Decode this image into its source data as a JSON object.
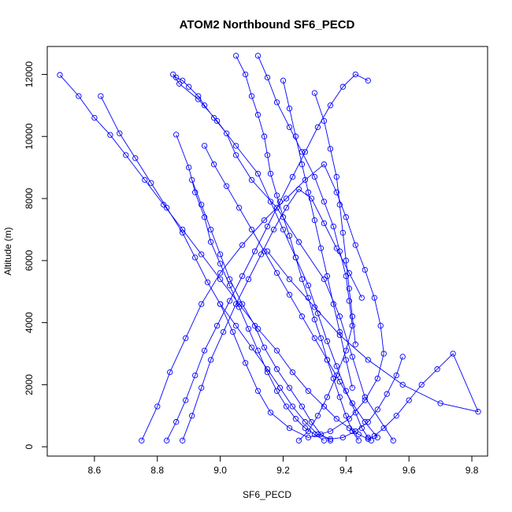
{
  "chart_data": {
    "type": "line",
    "title": "ATOM2 Northbound SF6_PECD",
    "xlabel": "SF6_PECD",
    "ylabel": "Altitude (m)",
    "xlim": [
      8.45,
      9.85
    ],
    "ylim": [
      -300,
      12900
    ],
    "xticks": [
      8.6,
      8.8,
      9.0,
      9.2,
      9.4,
      9.6,
      9.8
    ],
    "xtick_labels": [
      "8.6",
      "8.8",
      "9.0",
      "9.2",
      "9.4",
      "9.6",
      "9.8"
    ],
    "yticks": [
      0,
      2000,
      4000,
      6000,
      8000,
      10000,
      12000
    ],
    "ytick_labels": [
      "0",
      "2000",
      "4000",
      "6000",
      "8000",
      "10000",
      "12000"
    ],
    "grid": false,
    "legend": "none",
    "marker": "open-circle",
    "color": "#0000ff",
    "series": [
      {
        "x": [
          9.55,
          9.46,
          9.42,
          9.38,
          9.33,
          9.25,
          9.18,
          9.1,
          9.05,
          9.02,
          8.98,
          8.95,
          8.93,
          8.9,
          8.88,
          8.86,
          8.85,
          8.87,
          8.93,
          8.99,
          9.05,
          9.12,
          9.16,
          9.2,
          9.24,
          9.28,
          9.31,
          9.34,
          9.37,
          9.4,
          9.43,
          9.45,
          9.47,
          9.48
        ],
        "y": [
          200,
          1600,
          2900,
          4200,
          5400,
          6600,
          7700,
          8600,
          9400,
          10100,
          10600,
          11000,
          11300,
          11600,
          11800,
          11900,
          12000,
          11700,
          11200,
          10500,
          9700,
          8800,
          7900,
          7000,
          6100,
          5200,
          4300,
          3400,
          2600,
          1800,
          1100,
          600,
          300,
          200
        ]
      },
      {
        "x": [
          8.75,
          8.8,
          8.84,
          8.89,
          8.94,
          9.0,
          9.07,
          9.14,
          9.21,
          9.27,
          9.33,
          9.37,
          9.4,
          9.43,
          9.46,
          9.49,
          9.51,
          9.52,
          9.5,
          9.46,
          9.41,
          9.35,
          9.28,
          9.22,
          9.16,
          9.12,
          9.08,
          9.04,
          9.0
        ],
        "y": [
          200,
          1300,
          2400,
          3500,
          4600,
          5600,
          6500,
          7300,
          8000,
          8600,
          9100,
          8200,
          7400,
          6500,
          5700,
          4800,
          3900,
          3000,
          2200,
          1500,
          900,
          500,
          300,
          600,
          1100,
          1800,
          2700,
          3700,
          4600
        ]
      },
      {
        "x": [
          8.49,
          8.55,
          8.6,
          8.65,
          8.7,
          8.76,
          8.82,
          8.88,
          8.94,
          9.0,
          9.06,
          9.12,
          9.18,
          9.23,
          9.28,
          9.33,
          9.37,
          9.41,
          9.44,
          9.47,
          9.49,
          9.52,
          9.56,
          9.6,
          9.64,
          9.69,
          9.74,
          9.82,
          9.7,
          9.58,
          9.47,
          9.38,
          9.3,
          9.22,
          9.15
        ],
        "y": [
          11980,
          11300,
          10600,
          10050,
          9400,
          8600,
          7800,
          7000,
          6200,
          5400,
          4600,
          3800,
          3100,
          2400,
          1800,
          1300,
          900,
          600,
          400,
          250,
          350,
          600,
          1000,
          1500,
          2000,
          2500,
          3000,
          1130,
          1400,
          2000,
          2800,
          3600,
          4500,
          5400,
          6300
        ]
      },
      {
        "x": [
          8.62,
          8.68,
          8.73,
          8.78,
          8.83,
          8.88,
          8.92,
          8.96,
          9.0,
          9.05,
          9.1,
          9.15,
          9.19,
          9.23,
          9.27,
          9.31,
          9.35,
          9.39,
          9.43,
          9.47,
          9.5,
          9.53,
          9.56,
          9.58
        ],
        "y": [
          11300,
          10100,
          9300,
          8500,
          7700,
          6900,
          6100,
          5300,
          4600,
          3900,
          3200,
          2500,
          1900,
          1300,
          800,
          400,
          250,
          300,
          500,
          800,
          1200,
          1700,
          2300,
          2900
        ]
      },
      {
        "x": [
          9.05,
          9.08,
          9.1,
          9.12,
          9.14,
          9.15,
          9.16,
          9.18,
          9.2,
          9.22,
          9.24,
          9.26,
          9.28,
          9.3,
          9.32,
          9.34,
          9.36,
          9.38,
          9.4,
          9.42,
          9.44
        ],
        "y": [
          12600,
          12000,
          11300,
          10700,
          10000,
          9400,
          8800,
          8100,
          7400,
          6800,
          6100,
          5400,
          4800,
          4100,
          3500,
          2800,
          2200,
          1600,
          1000,
          500,
          200
        ]
      },
      {
        "x": [
          9.12,
          9.15,
          9.18,
          9.22,
          9.26,
          9.3,
          9.33,
          9.36,
          9.38,
          9.4,
          9.41,
          9.42,
          9.4,
          9.37,
          9.34,
          9.31,
          9.28,
          9.25
        ],
        "y": [
          12600,
          11900,
          11100,
          10300,
          9500,
          8700,
          7900,
          7100,
          6300,
          5500,
          4700,
          3900,
          3100,
          2300,
          1600,
          1000,
          500,
          200
        ]
      },
      {
        "x": [
          8.86,
          8.9,
          8.92,
          8.95,
          8.97,
          9.0,
          9.03,
          9.06,
          9.09,
          9.12,
          9.15,
          9.18,
          9.21,
          9.24,
          9.27,
          9.3,
          9.33
        ],
        "y": [
          10060,
          9000,
          8200,
          7400,
          6600,
          5900,
          5200,
          4500,
          3800,
          3100,
          2400,
          1800,
          1300,
          900,
          600,
          400,
          200
        ]
      },
      {
        "x": [
          8.83,
          8.86,
          8.89,
          8.92,
          8.95,
          8.99,
          9.03,
          9.07,
          9.11,
          9.15,
          9.19,
          9.23,
          9.27,
          9.31,
          9.35,
          9.39,
          9.43,
          9.47
        ],
        "y": [
          200,
          800,
          1500,
          2300,
          3100,
          3900,
          4700,
          5500,
          6300,
          7100,
          7900,
          8700,
          9500,
          10300,
          11000,
          11600,
          12000,
          11800
        ]
      },
      {
        "x": [
          8.95,
          8.98,
          9.02,
          9.06,
          9.1,
          9.14,
          9.18,
          9.22,
          9.26,
          9.3,
          9.34,
          9.38,
          9.42,
          9.46,
          9.5
        ],
        "y": [
          9700,
          9100,
          8400,
          7700,
          7000,
          6300,
          5600,
          4900,
          4200,
          3500,
          2800,
          2100,
          1400,
          800,
          300
        ]
      },
      {
        "x": [
          8.88,
          8.91,
          8.94,
          8.97,
          9.01,
          9.05,
          9.09,
          9.13,
          9.17,
          9.21,
          9.25,
          9.29,
          9.33,
          9.37,
          9.41,
          9.45
        ],
        "y": [
          200,
          1000,
          1900,
          2800,
          3700,
          4600,
          5400,
          6200,
          7000,
          7700,
          8300,
          8000,
          7200,
          6400,
          5600,
          4800
        ]
      },
      {
        "x": [
          8.91,
          8.94,
          8.97,
          9.0,
          9.03,
          9.07,
          9.11,
          9.14,
          9.18,
          9.22,
          9.26,
          9.29,
          9.32,
          9.35
        ],
        "y": [
          8600,
          7800,
          7000,
          6200,
          5400,
          4600,
          3900,
          3200,
          2500,
          1900,
          1300,
          800,
          400,
          200
        ]
      },
      {
        "x": [
          9.2,
          9.22,
          9.24,
          9.26,
          9.28,
          9.3,
          9.32,
          9.34,
          9.36,
          9.38,
          9.4,
          9.42
        ],
        "y": [
          11800,
          10900,
          10000,
          9100,
          8200,
          7300,
          6400,
          5500,
          4600,
          3700,
          2800,
          1900
        ]
      },
      {
        "x": [
          9.3,
          9.33,
          9.35,
          9.37,
          9.38,
          9.39,
          9.4,
          9.41,
          9.42,
          9.43
        ],
        "y": [
          11400,
          10500,
          9600,
          8700,
          7800,
          6900,
          6000,
          5100,
          4200,
          3300
        ]
      }
    ]
  }
}
